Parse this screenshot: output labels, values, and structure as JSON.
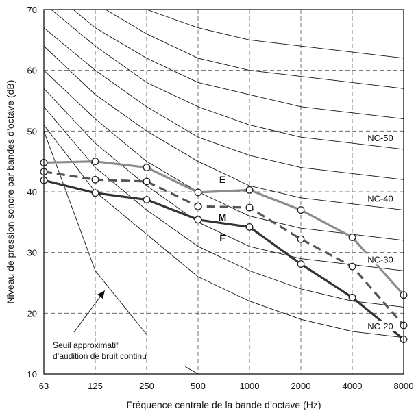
{
  "chart_data": {
    "type": "line",
    "xlabel": "Fréquence centrale de la bande d’octave (Hz)",
    "ylabel": "Niveau de pression sonore par bandes d’octave (dB)",
    "x_categories": [
      "63",
      "125",
      "250",
      "500",
      "1000",
      "2000",
      "4000",
      "8000"
    ],
    "ylim": [
      10,
      70
    ],
    "yticks": [
      "10",
      "20",
      "30",
      "40",
      "50",
      "60",
      "70"
    ],
    "grid": true,
    "nc_curves": [
      {
        "name": "NC-20",
        "values": [
          51,
          40,
          33,
          26,
          22,
          19,
          17,
          16
        ]
      },
      {
        "name": "",
        "values": [
          54,
          44,
          37,
          31,
          27,
          24,
          22,
          21
        ]
      },
      {
        "name": "NC-30",
        "values": [
          57,
          48,
          41,
          35,
          31,
          29,
          28,
          27
        ]
      },
      {
        "name": "",
        "values": [
          60,
          52,
          45,
          40,
          36,
          34,
          33,
          32
        ]
      },
      {
        "name": "NC-40",
        "values": [
          64,
          56,
          50,
          45,
          41,
          39,
          38,
          37
        ]
      },
      {
        "name": "",
        "values": [
          67,
          60,
          54,
          49,
          46,
          44,
          43,
          42
        ]
      },
      {
        "name": "NC-50",
        "values": [
          71,
          64,
          58,
          54,
          51,
          49,
          48,
          47
        ]
      },
      {
        "name": "",
        "values": [
          74,
          67,
          62,
          58,
          56,
          54,
          53,
          52
        ]
      },
      {
        "name": "",
        "values": [
          77,
          71,
          66,
          62,
          60,
          59,
          58,
          57
        ]
      },
      {
        "name": "",
        "values": [
          80,
          75,
          70,
          67,
          65,
          64,
          63,
          62
        ]
      }
    ],
    "threshold_curve": {
      "x_index": [
        0,
        1,
        2
      ],
      "values": [
        50,
        27,
        16.5
      ]
    },
    "threshold_tail": {
      "x_index": [
        2.75,
        3
      ],
      "values": [
        11.2,
        10
      ]
    },
    "series": [
      {
        "name": "E",
        "color": "#8c8c8c",
        "dash": false,
        "values": [
          44.8,
          45.0,
          44.0,
          39.9,
          40.3,
          37.0,
          32.5,
          23.0
        ]
      },
      {
        "name": "M",
        "color": "#555555",
        "dash": true,
        "values": [
          43.3,
          42.0,
          41.7,
          37.6,
          37.4,
          32.2,
          27.7,
          18.0
        ]
      },
      {
        "name": "F",
        "color": "#333333",
        "dash": false,
        "values": [
          41.9,
          39.8,
          38.7,
          35.4,
          34.2,
          28.1,
          22.6,
          15.7
        ]
      }
    ],
    "annotation": {
      "lines": [
        "Seuil approximatif",
        "d’audition de bruit continu"
      ]
    }
  }
}
